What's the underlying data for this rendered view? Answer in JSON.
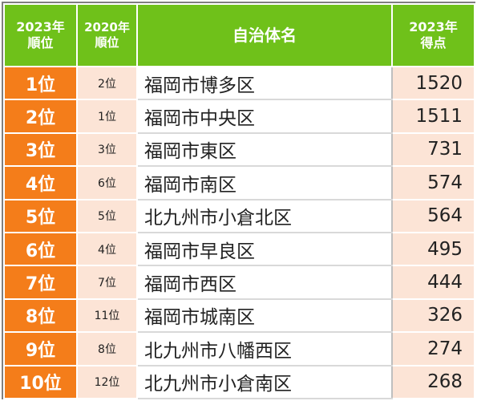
{
  "header": {
    "rank_2023_line1": "2023年",
    "rank_2023_line2": "順位",
    "rank_2020_line1": "2020年",
    "rank_2020_line2": "順位",
    "municipality": "自治体名",
    "score_2023_line1": "2023年",
    "score_2023_line2": "得点"
  },
  "colors": {
    "header_green": "#6fc11a",
    "rank_orange": "#f47d1a",
    "light_peach": "#fce4d6"
  },
  "rows": [
    {
      "rank": "1位",
      "prev_rank": "2位",
      "name": "福岡市博多区",
      "score": "1520"
    },
    {
      "rank": "2位",
      "prev_rank": "1位",
      "name": "福岡市中央区",
      "score": "1511"
    },
    {
      "rank": "3位",
      "prev_rank": "3位",
      "name": "福岡市東区",
      "score": "731"
    },
    {
      "rank": "4位",
      "prev_rank": "6位",
      "name": "福岡市南区",
      "score": "574"
    },
    {
      "rank": "5位",
      "prev_rank": "5位",
      "name": "北九州市小倉北区",
      "score": "564"
    },
    {
      "rank": "6位",
      "prev_rank": "4位",
      "name": "福岡市早良区",
      "score": "495"
    },
    {
      "rank": "7位",
      "prev_rank": "7位",
      "name": "福岡市西区",
      "score": "444"
    },
    {
      "rank": "8位",
      "prev_rank": "11位",
      "name": "福岡市城南区",
      "score": "326"
    },
    {
      "rank": "9位",
      "prev_rank": "8位",
      "name": "北九州市八幡西区",
      "score": "274"
    },
    {
      "rank": "10位",
      "prev_rank": "12位",
      "name": "北九州市小倉南区",
      "score": "268"
    }
  ]
}
